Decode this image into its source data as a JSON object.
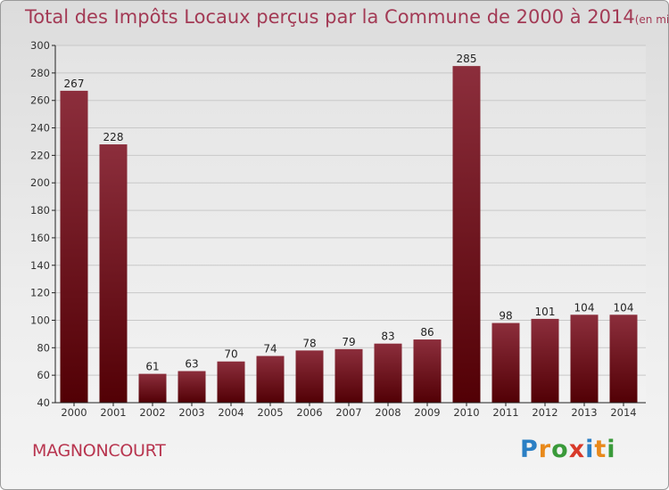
{
  "chart_data": {
    "type": "bar",
    "title": "Total des Impôts Locaux perçus par la Commune de 2000 à 2014",
    "subtitle": "(en milliers d'€)",
    "categories": [
      "2000",
      "2001",
      "2002",
      "2003",
      "2004",
      "2005",
      "2006",
      "2007",
      "2008",
      "2009",
      "2010",
      "2011",
      "2012",
      "2013",
      "2014"
    ],
    "values": [
      267,
      228,
      61,
      63,
      70,
      74,
      78,
      79,
      83,
      86,
      285,
      98,
      101,
      104,
      104
    ],
    "ylim": [
      40,
      300
    ],
    "yticks": [
      40,
      60,
      80,
      100,
      120,
      140,
      160,
      180,
      200,
      220,
      240,
      260,
      280,
      300
    ],
    "grid": true,
    "xlabel": "",
    "ylabel": ""
  },
  "commune": "MAGNONCOURT",
  "logo": {
    "text": "Proxiti",
    "letters": [
      "P",
      "r",
      "o",
      "x",
      "i",
      "t",
      "i"
    ],
    "colors": [
      "#2b7fc4",
      "#e8891b",
      "#3a9a3a",
      "#d83a2a",
      "#2b7fc4",
      "#e8891b",
      "#3a9a3a"
    ]
  },
  "colors": {
    "bar_top": "#8c2e3c",
    "bar_bottom": "#520005",
    "grid": "#c8c8c8",
    "axis": "#222222",
    "title": "#a33a55"
  }
}
